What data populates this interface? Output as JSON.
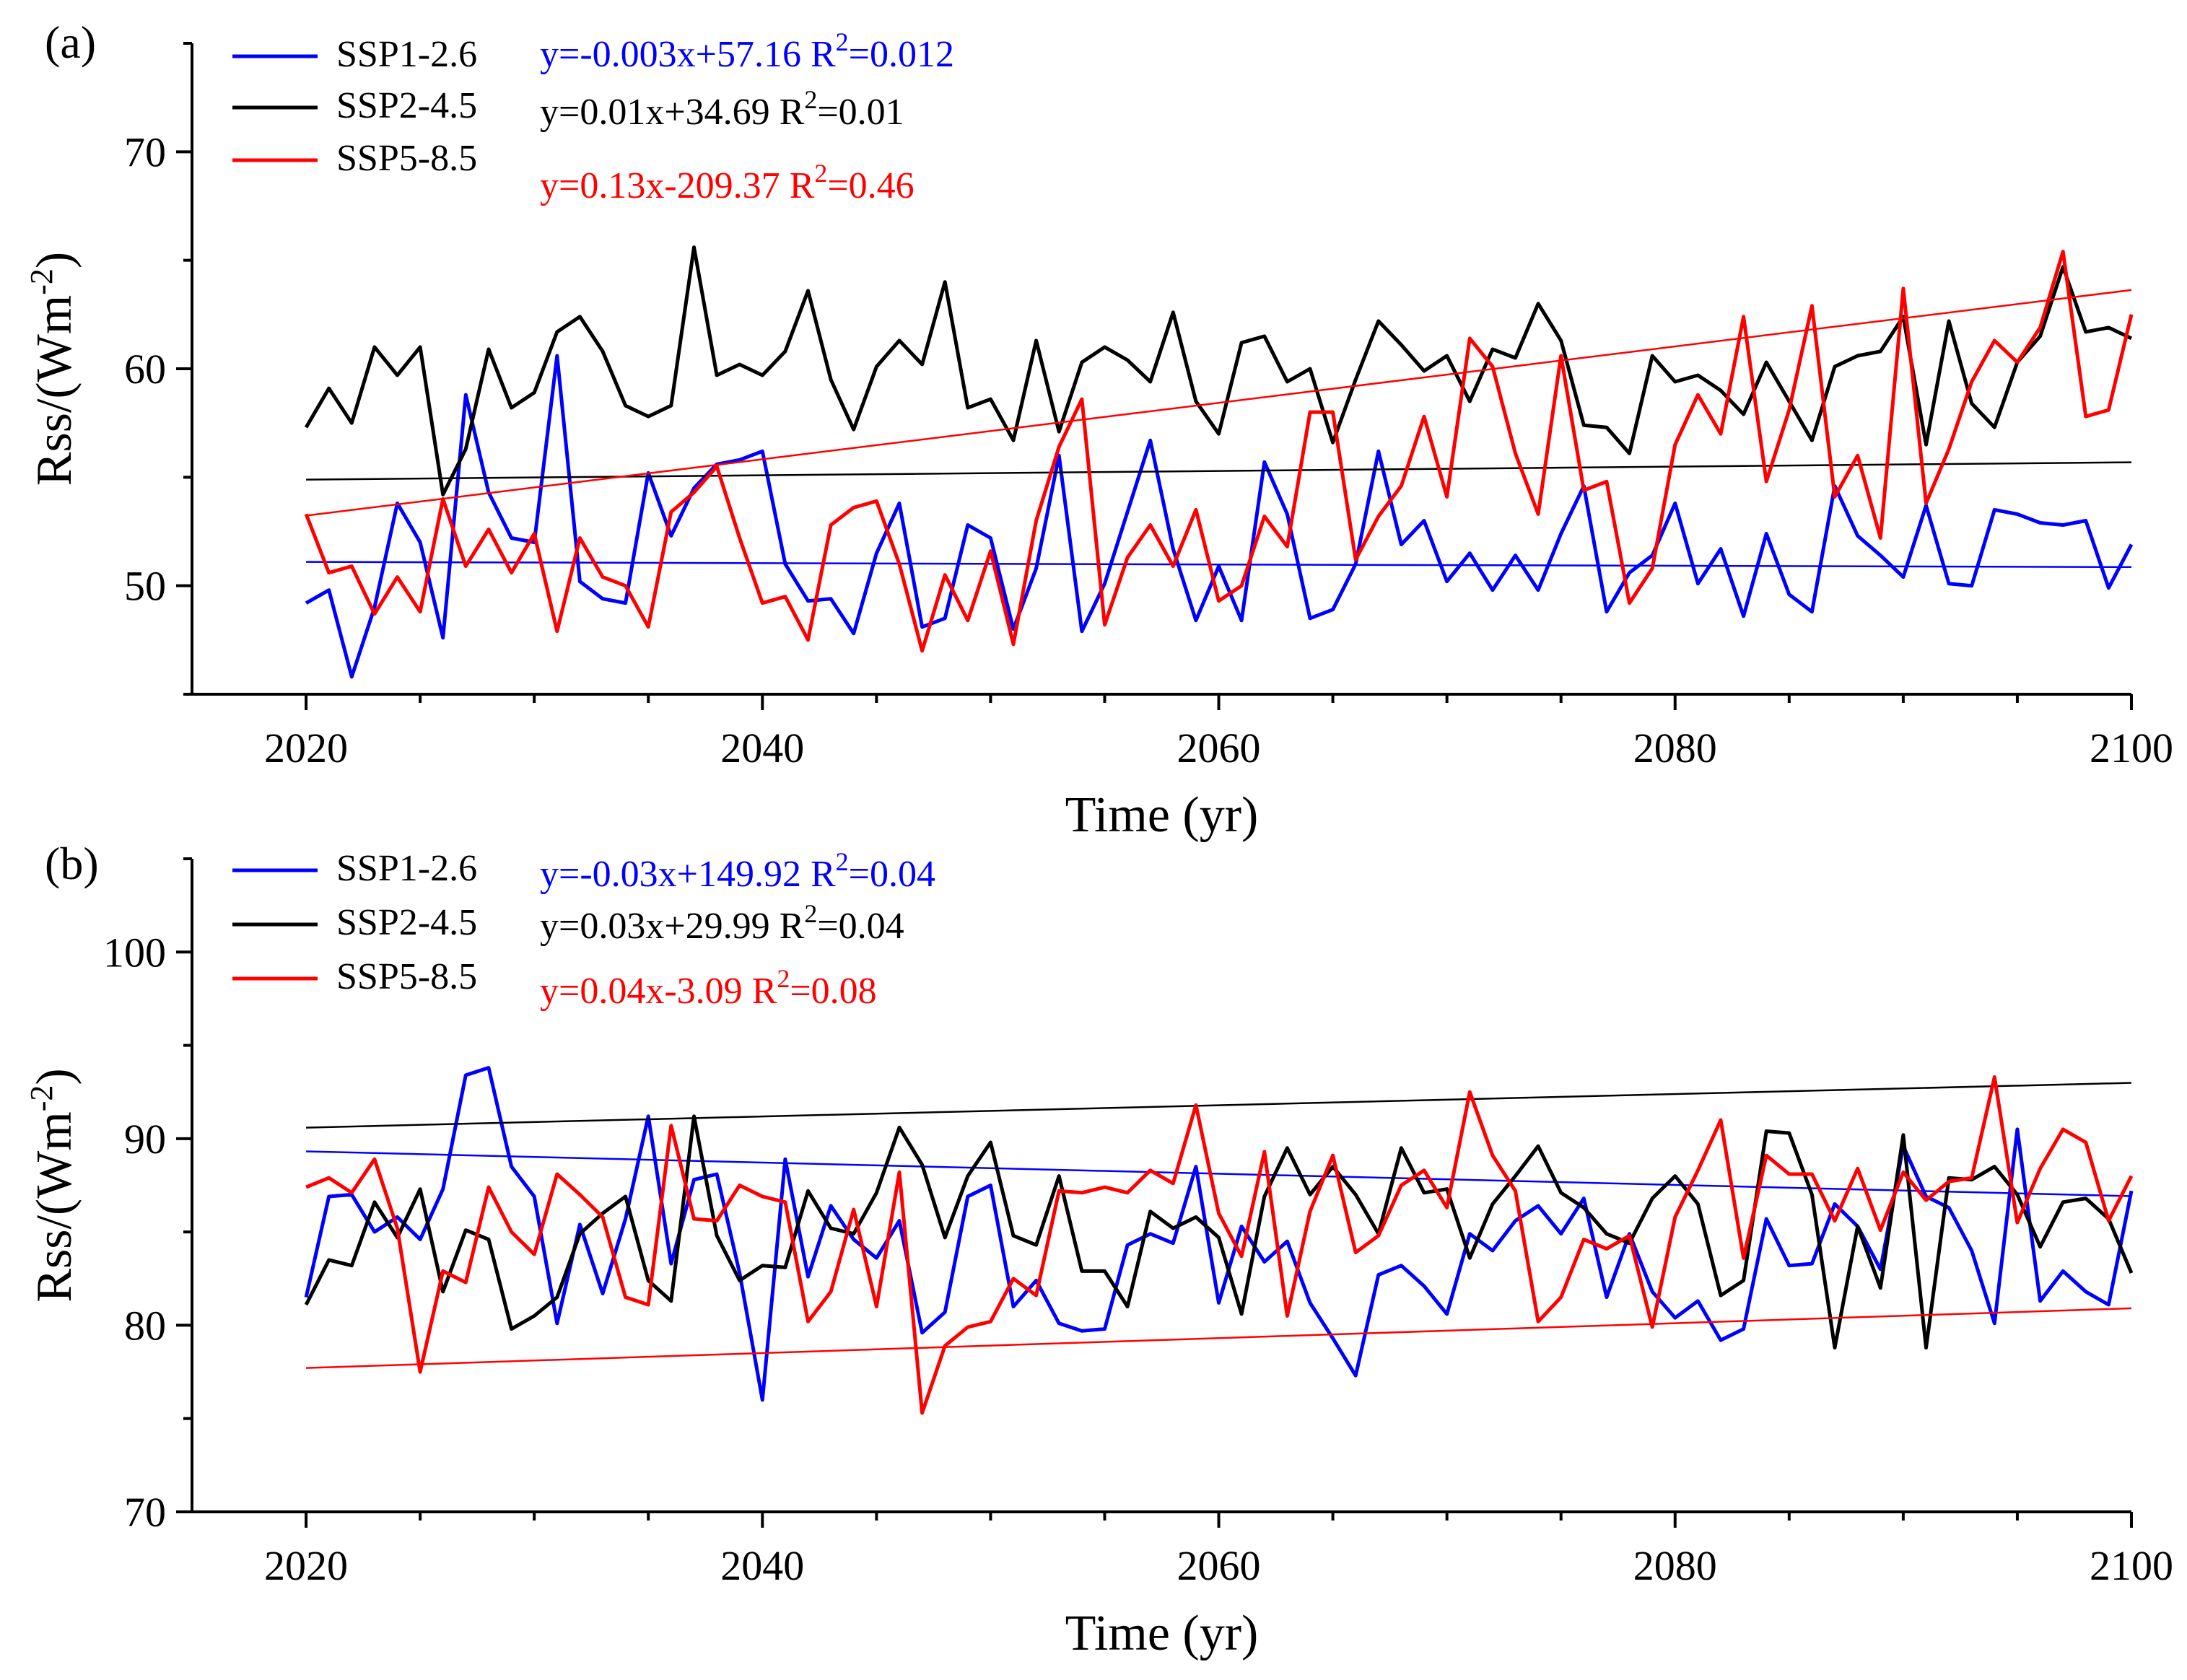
{
  "colors": {
    "SSP1-2.6": "#0000ff",
    "SSP2-4.5": "#000000",
    "SSP5-8.5": "#ff0000"
  },
  "chart_data": [
    {
      "panel_label": "(a)",
      "type": "line",
      "xlabel": "Time (yr)",
      "ylabel_prefix": "Rss/(Wm",
      "ylabel_sup": "-2",
      "ylabel_suffix": ")",
      "xlim": [
        2015,
        2100
      ],
      "ylim": [
        45,
        75
      ],
      "xticks": [
        2020,
        2040,
        2060,
        2080,
        2100
      ],
      "yticks": [
        50,
        60,
        70
      ],
      "x_start": 2020,
      "series": [
        {
          "name": "SSP1-2.6",
          "color": "#0000ff",
          "values": [
            49.2,
            49.8,
            45.8,
            49,
            53.8,
            52,
            47.6,
            58.8,
            54.3,
            52.2,
            52,
            60.6,
            50.2,
            49.4,
            49.2,
            55.2,
            52.3,
            54.5,
            55.6,
            55.8,
            56.2,
            51,
            49.3,
            49.4,
            47.8,
            51.5,
            53.8,
            48.1,
            48.5,
            52.8,
            52.2,
            48,
            50.8,
            56,
            47.9,
            50.1,
            53.4,
            56.7,
            51.7,
            48.4,
            50.9,
            48.4,
            55.7,
            53.3,
            48.5,
            48.9,
            51,
            56.2,
            51.9,
            53,
            50.2,
            51.5,
            49.8,
            51.4,
            49.8,
            52.4,
            54.6,
            48.8,
            50.6,
            51.4,
            53.8,
            50.1,
            51.7,
            48.6,
            52.4,
            49.6,
            48.8,
            54.6,
            52.3,
            51.4,
            50.4,
            53.7,
            50.1,
            50,
            53.5,
            53.3,
            52.9,
            52.8,
            53,
            49.9,
            51.9
          ],
          "trend": {
            "slope": -0.003,
            "intercept": 57.16,
            "equation": "y=-0.003x+57.16",
            "r2_label": "R",
            "r2_sup": "2",
            "r2_value": "=0.012"
          }
        },
        {
          "name": "SSP2-4.5",
          "color": "#000000",
          "values": [
            57.3,
            59.1,
            57.5,
            61,
            59.7,
            61,
            54.2,
            56.3,
            60.9,
            58.2,
            58.9,
            61.7,
            62.4,
            60.8,
            58.3,
            57.8,
            58.3,
            65.6,
            59.7,
            60.2,
            59.7,
            60.8,
            63.6,
            59.5,
            57.2,
            60.1,
            61.3,
            60.2,
            64,
            58.2,
            58.6,
            56.7,
            61.3,
            57.1,
            60.3,
            61,
            60.4,
            59.4,
            62.6,
            58.5,
            57,
            61.2,
            61.5,
            59.4,
            60,
            56.6,
            59.5,
            62.2,
            61.1,
            59.9,
            60.6,
            58.5,
            60.9,
            60.5,
            63,
            61.3,
            57.4,
            57.3,
            56.1,
            60.6,
            59.4,
            59.7,
            59,
            57.9,
            60.3,
            58.5,
            56.7,
            60.1,
            60.6,
            60.8,
            62.4,
            56.5,
            62.2,
            58.4,
            57.3,
            60.3,
            61.5,
            64.7,
            61.7,
            61.9,
            61.4
          ],
          "trend": {
            "slope": 0.01,
            "intercept": 34.69,
            "equation": "y=0.01x+34.69",
            "r2_label": "R",
            "r2_sup": "2",
            "r2_value": "=0.01"
          }
        },
        {
          "name": "SSP5-8.5",
          "color": "#ff0000",
          "values": [
            53.3,
            50.6,
            50.9,
            48.7,
            50.4,
            48.8,
            54,
            50.9,
            52.6,
            50.6,
            52.4,
            47.9,
            52.2,
            50.4,
            50,
            48.1,
            53.4,
            54.3,
            55.5,
            52.2,
            49.2,
            49.5,
            47.5,
            52.8,
            53.6,
            53.9,
            51,
            47,
            50.5,
            48.4,
            51.6,
            47.3,
            53,
            56.4,
            58.6,
            48.2,
            51.3,
            52.8,
            50.9,
            53.5,
            49.3,
            50,
            53.2,
            51.8,
            58,
            58,
            51.2,
            53.2,
            54.6,
            57.8,
            54.1,
            61.4,
            60.1,
            56.1,
            53.3,
            60.6,
            54.4,
            54.8,
            49.2,
            50.8,
            56.5,
            58.8,
            57,
            62.4,
            54.8,
            58.1,
            62.9,
            54.1,
            56,
            52.2,
            63.7,
            53.8,
            56.3,
            59.4,
            61.3,
            60.3,
            61.9,
            65.4,
            57.8,
            58.1,
            62.5
          ],
          "trend": {
            "slope": 0.13,
            "intercept": -209.37,
            "equation": "y=0.13x-209.37",
            "r2_label": "R",
            "r2_sup": "2",
            "r2_value": "=0.46"
          }
        }
      ]
    },
    {
      "panel_label": "(b)",
      "type": "line",
      "xlabel": "Time (yr)",
      "ylabel_prefix": "Rss/(Wm",
      "ylabel_sup": "-2",
      "ylabel_suffix": ")",
      "xlim": [
        2015,
        2100
      ],
      "ylim": [
        70,
        105
      ],
      "xticks": [
        2020,
        2040,
        2060,
        2080,
        2100
      ],
      "yticks": [
        70,
        80,
        90,
        100
      ],
      "x_start": 2020,
      "series": [
        {
          "name": "SSP1-2.6",
          "color": "#0000ff",
          "values": [
            81.5,
            86.9,
            87,
            85,
            85.8,
            84.6,
            87.3,
            93.4,
            93.8,
            88.5,
            86.9,
            80.1,
            85.4,
            81.7,
            85.7,
            91.2,
            83.3,
            87.8,
            88.1,
            82.8,
            76,
            88.9,
            82.6,
            86.4,
            84.6,
            83.6,
            85.6,
            79.6,
            80.7,
            86.9,
            87.5,
            81,
            82.4,
            80.1,
            79.7,
            79.8,
            84.3,
            84.9,
            84.4,
            88.5,
            81.2,
            85.3,
            83.4,
            84.5,
            81.2,
            79.3,
            77.3,
            82.7,
            83.2,
            82.1,
            80.6,
            84.9,
            84,
            85.6,
            86.4,
            84.9,
            86.8,
            81.5,
            84.9,
            81.8,
            80.4,
            81.3,
            79.2,
            79.8,
            85.7,
            83.2,
            83.3,
            86.5,
            85.3,
            83,
            89.6,
            86.9,
            86.3,
            84,
            80.1,
            90.5,
            81.3,
            82.9,
            81.8,
            81.1,
            87.2
          ],
          "trend": {
            "slope": -0.03,
            "intercept": 149.92,
            "equation": "y=-0.03x+149.92",
            "r2_label": "R",
            "r2_sup": "2",
            "r2_value": "=0.04"
          }
        },
        {
          "name": "SSP2-4.5",
          "color": "#000000",
          "values": [
            81.1,
            83.5,
            83.2,
            86.6,
            84.7,
            87.3,
            81.8,
            85.1,
            84.6,
            79.8,
            80.5,
            81.5,
            84.9,
            86,
            86.9,
            82.4,
            81.3,
            91.2,
            84.8,
            82.4,
            83.2,
            83.1,
            87.2,
            85.2,
            84.9,
            87.1,
            90.6,
            88.6,
            84.7,
            88,
            89.8,
            84.8,
            84.3,
            88,
            82.9,
            82.9,
            81,
            86.1,
            85.2,
            85.8,
            84.7,
            80.6,
            86.9,
            89.5,
            87,
            88.5,
            87,
            84.9,
            89.5,
            87.1,
            87.3,
            83.6,
            86.5,
            88,
            89.6,
            87.1,
            86.3,
            84.9,
            84.4,
            86.8,
            88,
            86.5,
            81.6,
            82.4,
            90.4,
            90.3,
            87,
            78.8,
            85.3,
            82,
            90.2,
            78.8,
            87.9,
            87.8,
            88.5,
            87,
            84.2,
            86.6,
            86.8,
            85.7,
            82.8
          ],
          "trend": {
            "slope": 0.03,
            "intercept": 29.99,
            "equation": "y=0.03x+29.99",
            "r2_label": "R",
            "r2_sup": "2",
            "r2_value": "=0.04"
          }
        },
        {
          "name": "SSP5-8.5",
          "color": "#ff0000",
          "values": [
            87.4,
            87.9,
            87.1,
            88.9,
            85.2,
            77.5,
            82.9,
            82.3,
            87.4,
            85,
            83.8,
            88.1,
            87,
            85.8,
            81.5,
            81.1,
            90.7,
            85.7,
            85.6,
            87.5,
            86.9,
            86.6,
            80.2,
            81.8,
            86.2,
            81,
            88.2,
            75.3,
            78.9,
            79.9,
            80.2,
            82.5,
            81.6,
            87.2,
            87.1,
            87.4,
            87.1,
            88.3,
            87.6,
            91.8,
            86,
            83.7,
            89.3,
            80.5,
            86.1,
            89.1,
            83.9,
            84.8,
            87.5,
            88.3,
            86.3,
            92.5,
            89.1,
            87.2,
            80.2,
            81.5,
            84.6,
            84.1,
            84.8,
            79.9,
            85.8,
            88.3,
            91,
            83.6,
            89.1,
            88.1,
            88.1,
            85.6,
            88.4,
            85.1,
            88.2,
            86.7,
            87.7,
            87.9,
            93.3,
            85.5,
            88.4,
            90.5,
            89.8,
            85.6,
            88
          ],
          "trend": {
            "slope": 0.04,
            "intercept": -3.09,
            "equation": "y=0.04x-3.09",
            "r2_label": "R",
            "r2_sup": "2",
            "r2_value": "=0.08"
          }
        }
      ]
    }
  ]
}
